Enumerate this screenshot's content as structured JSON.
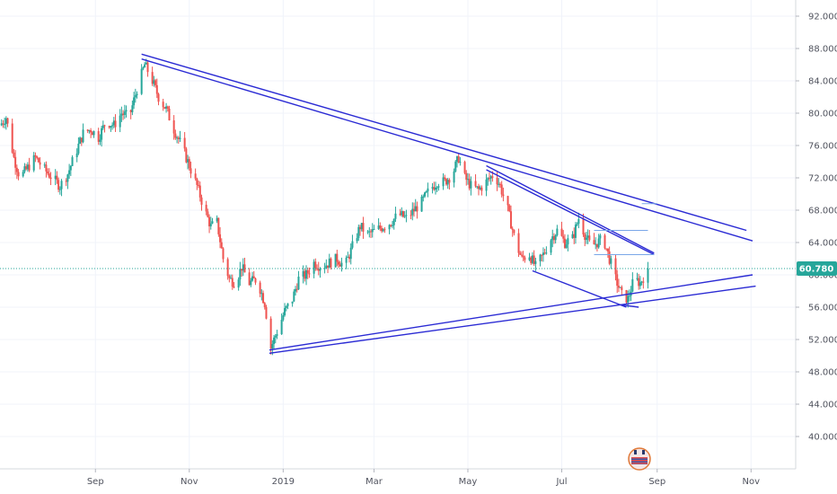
{
  "chart_data": {
    "type": "candlestick",
    "title": "",
    "xlabel": "",
    "ylabel": "",
    "ylim": [
      36,
      94
    ],
    "x_range": [
      "2018-07-01",
      "2019-11-30"
    ],
    "grid": true,
    "legend": "none",
    "colors": {
      "up": "#26a69a",
      "down": "#ef5350",
      "trendline": "#2b2bd4",
      "level": "#7aa7e8",
      "last_price_line": "#26a69a",
      "grid": "#f0f3fa"
    },
    "y_ticks": [
      "92.000",
      "88.000",
      "84.000",
      "80.000",
      "76.000",
      "72.000",
      "68.000",
      "64.000",
      "60.000",
      "56.000",
      "52.000",
      "48.000",
      "44.000",
      "40.000"
    ],
    "y_tick_values": [
      92,
      88,
      84,
      80,
      76,
      72,
      68,
      64,
      60,
      56,
      52,
      48,
      44,
      40
    ],
    "x_ticks": [
      {
        "label": "Sep",
        "date": "2018-09-01"
      },
      {
        "label": "Nov",
        "date": "2018-11-01"
      },
      {
        "label": "2019",
        "date": "2019-01-01"
      },
      {
        "label": "Mar",
        "date": "2019-03-01"
      },
      {
        "label": "May",
        "date": "2019-05-01"
      },
      {
        "label": "Jul",
        "date": "2019-07-01"
      },
      {
        "label": "Sep",
        "date": "2019-09-01"
      },
      {
        "label": "Nov",
        "date": "2019-11-01"
      }
    ],
    "last_price": {
      "value": 60.78,
      "label": "60.780"
    },
    "price_path": [
      [
        "2018-07-01",
        78.5
      ],
      [
        "2018-07-05",
        79.5
      ],
      [
        "2018-07-10",
        74.5
      ],
      [
        "2018-07-14",
        72.0
      ],
      [
        "2018-07-18",
        73.0
      ],
      [
        "2018-07-24",
        74.5
      ],
      [
        "2018-07-30",
        73.0
      ],
      [
        "2018-08-04",
        72.0
      ],
      [
        "2018-08-09",
        71.0
      ],
      [
        "2018-08-14",
        72.5
      ],
      [
        "2018-08-19",
        75.0
      ],
      [
        "2018-08-24",
        77.5
      ],
      [
        "2018-08-29",
        78.0
      ],
      [
        "2018-09-03",
        77.0
      ],
      [
        "2018-09-08",
        79.0
      ],
      [
        "2018-09-13",
        78.5
      ],
      [
        "2018-09-18",
        80.0
      ],
      [
        "2018-09-23",
        79.5
      ],
      [
        "2018-09-28",
        83.0
      ],
      [
        "2018-10-03",
        86.0
      ],
      [
        "2018-10-07",
        84.5
      ],
      [
        "2018-10-12",
        82.0
      ],
      [
        "2018-10-17",
        80.5
      ],
      [
        "2018-10-22",
        78.0
      ],
      [
        "2018-10-27",
        76.0
      ],
      [
        "2018-11-01",
        73.5
      ],
      [
        "2018-11-06",
        71.0
      ],
      [
        "2018-11-11",
        68.0
      ],
      [
        "2018-11-15",
        66.0
      ],
      [
        "2018-11-19",
        66.5
      ],
      [
        "2018-11-23",
        62.0
      ],
      [
        "2018-11-27",
        59.5
      ],
      [
        "2018-12-01",
        59.0
      ],
      [
        "2018-12-05",
        61.0
      ],
      [
        "2018-12-10",
        59.0
      ],
      [
        "2018-12-15",
        59.5
      ],
      [
        "2018-12-20",
        56.5
      ],
      [
        "2018-12-24",
        51.0
      ],
      [
        "2018-12-28",
        53.0
      ],
      [
        "2019-01-02",
        55.5
      ],
      [
        "2019-01-07",
        57.0
      ],
      [
        "2019-01-11",
        59.5
      ],
      [
        "2019-01-16",
        60.0
      ],
      [
        "2019-01-21",
        61.5
      ],
      [
        "2019-01-26",
        61.0
      ],
      [
        "2019-01-31",
        61.5
      ],
      [
        "2019-02-05",
        62.0
      ],
      [
        "2019-02-10",
        61.0
      ],
      [
        "2019-02-15",
        63.5
      ],
      [
        "2019-02-20",
        66.0
      ],
      [
        "2019-02-25",
        65.0
      ],
      [
        "2019-03-02",
        65.5
      ],
      [
        "2019-03-07",
        66.0
      ],
      [
        "2019-03-12",
        66.5
      ],
      [
        "2019-03-17",
        67.5
      ],
      [
        "2019-03-22",
        67.0
      ],
      [
        "2019-03-27",
        68.0
      ],
      [
        "2019-04-01",
        69.0
      ],
      [
        "2019-04-06",
        70.5
      ],
      [
        "2019-04-11",
        71.5
      ],
      [
        "2019-04-16",
        71.5
      ],
      [
        "2019-04-21",
        72.5
      ],
      [
        "2019-04-25",
        74.5
      ],
      [
        "2019-04-29",
        72.0
      ],
      [
        "2019-05-03",
        71.0
      ],
      [
        "2019-05-08",
        70.5
      ],
      [
        "2019-05-13",
        71.5
      ],
      [
        "2019-05-18",
        72.5
      ],
      [
        "2019-05-22",
        71.0
      ],
      [
        "2019-05-27",
        68.0
      ],
      [
        "2019-06-01",
        64.0
      ],
      [
        "2019-06-05",
        62.0
      ],
      [
        "2019-06-10",
        62.5
      ],
      [
        "2019-06-14",
        61.0
      ],
      [
        "2019-06-19",
        62.5
      ],
      [
        "2019-06-24",
        64.5
      ],
      [
        "2019-06-28",
        65.5
      ],
      [
        "2019-07-03",
        64.0
      ],
      [
        "2019-07-08",
        64.5
      ],
      [
        "2019-07-12",
        67.0
      ],
      [
        "2019-07-16",
        65.0
      ],
      [
        "2019-07-20",
        63.5
      ],
      [
        "2019-07-24",
        64.0
      ],
      [
        "2019-07-28",
        64.5
      ],
      [
        "2019-08-01",
        62.0
      ],
      [
        "2019-08-05",
        59.5
      ],
      [
        "2019-08-09",
        57.5
      ],
      [
        "2019-08-13",
        57.0
      ],
      [
        "2019-08-17",
        59.5
      ],
      [
        "2019-08-21",
        59.0
      ],
      [
        "2019-08-26",
        60.78
      ]
    ],
    "trendlines": [
      {
        "from": [
          "2018-10-01",
          87.3
        ],
        "to": [
          "2019-10-29",
          65.5
        ]
      },
      {
        "from": [
          "2018-10-01",
          86.7
        ],
        "to": [
          "2019-11-02",
          64.2
        ]
      },
      {
        "from": [
          "2018-12-23",
          50.7
        ],
        "to": [
          "2019-11-02",
          60.0
        ]
      },
      {
        "from": [
          "2018-12-23",
          50.3
        ],
        "to": [
          "2019-11-04",
          58.6
        ]
      },
      {
        "from": [
          "2019-05-13",
          73.5
        ],
        "to": [
          "2019-08-30",
          62.7
        ]
      },
      {
        "from": [
          "2019-05-13",
          73.0
        ],
        "to": [
          "2019-08-30",
          62.5
        ]
      },
      {
        "from": [
          "2019-06-12",
          60.5
        ],
        "to": [
          "2019-08-12",
          56.0
        ]
      },
      {
        "from": [
          "2019-08-08",
          56.3
        ],
        "to": [
          "2019-08-20",
          56.0
        ]
      }
    ],
    "levels": [
      {
        "value": 62.5,
        "from": "2019-07-22",
        "to": "2019-08-30"
      },
      {
        "value": 65.5,
        "from": "2019-07-22",
        "to": "2019-08-26"
      },
      {
        "value": 68.8,
        "from": "2019-08-22",
        "to": "2019-09-01"
      }
    ]
  }
}
